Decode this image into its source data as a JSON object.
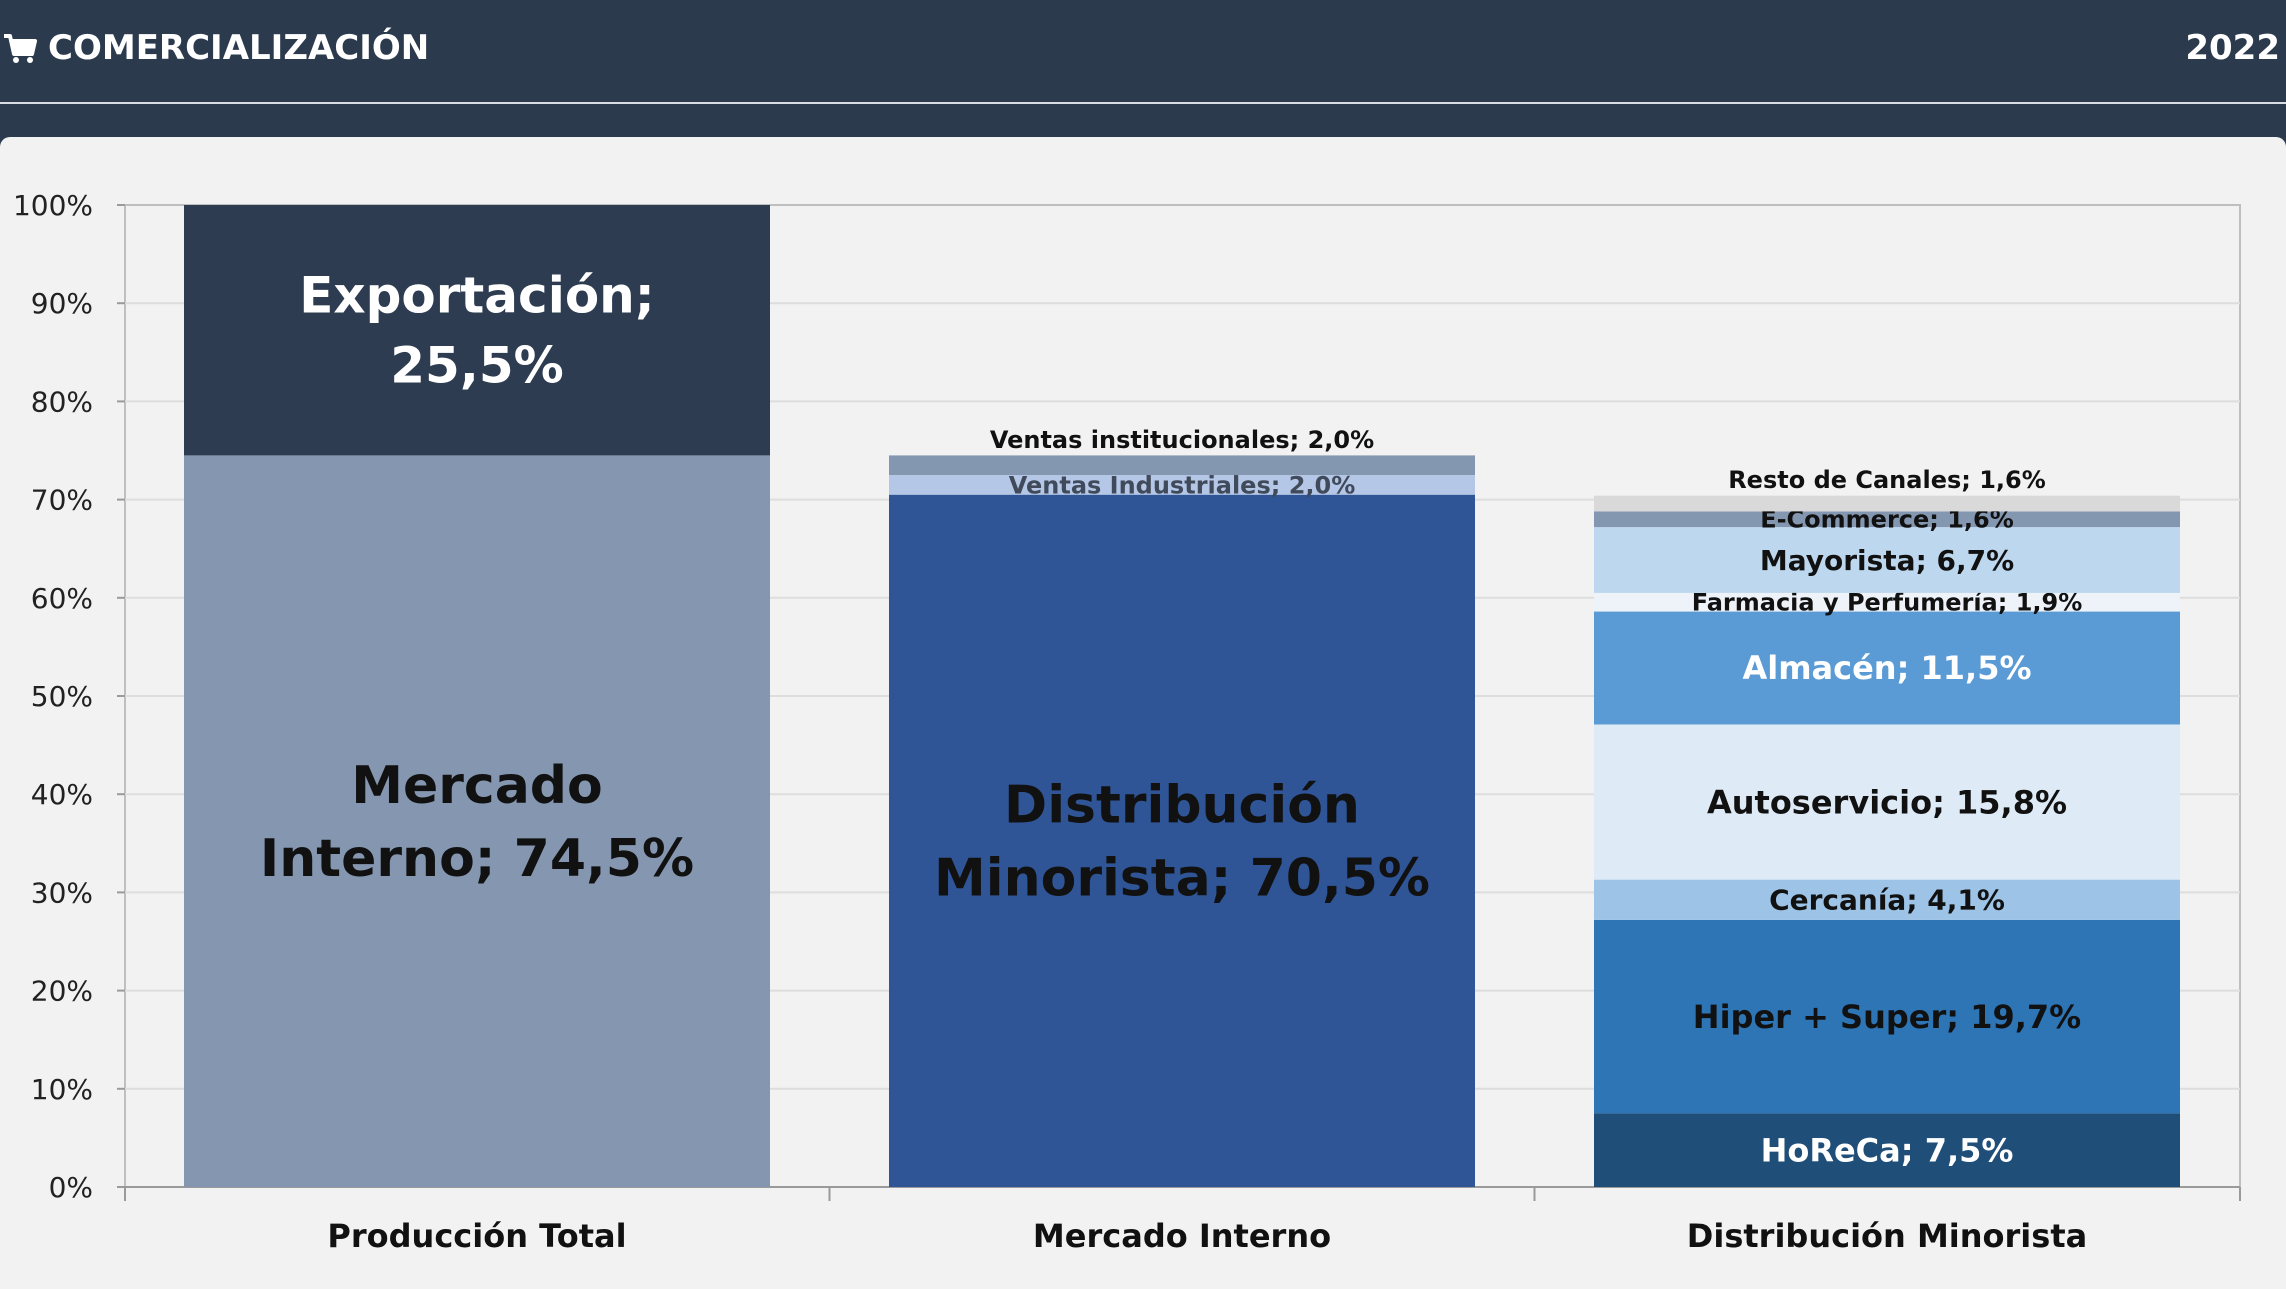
{
  "header": {
    "title": "COMERCIALIZACIÓN",
    "year": "2022",
    "icon": "shopping-cart-icon"
  },
  "chart_data": {
    "type": "bar",
    "stacked": true,
    "ylim": [
      0,
      100
    ],
    "y_ticks": [
      "0%",
      "10%",
      "20%",
      "30%",
      "40%",
      "50%",
      "60%",
      "70%",
      "80%",
      "90%",
      "100%"
    ],
    "grid": true,
    "categories": [
      "Producción Total",
      "Mercado Interno",
      "Distribución Minorista"
    ],
    "bars": [
      {
        "category": "Producción Total",
        "segments": [
          {
            "label": [
              "Mercado",
              "Interno; 74,5%"
            ],
            "value": 74.5,
            "color": "#8597b0",
            "text_color": "#111111",
            "size": "xl"
          },
          {
            "label": [
              "Exportación;",
              "25,5%"
            ],
            "value": 25.5,
            "color": "#2e3c51",
            "text_color": "#ffffff",
            "size": "lg"
          }
        ]
      },
      {
        "category": "Mercado Interno",
        "segments": [
          {
            "label": [
              "Distribución",
              "Minorista; 70,5%"
            ],
            "value": 70.5,
            "color": "#2f5597",
            "text_color": "#111111",
            "size": "xl"
          },
          {
            "label": [
              "Ventas Industriales; 2,0%"
            ],
            "value": 2.0,
            "color": "#b4c7e7",
            "text_color": "#404a5a",
            "size": "xs"
          },
          {
            "label": [
              "Ventas institucionales; 2,0%"
            ],
            "value": 2.0,
            "color": "#8497b0",
            "text_color": "#111111",
            "size": "xs",
            "label_above": true
          }
        ]
      },
      {
        "category": "Distribución Minorista",
        "segments": [
          {
            "label": [
              "HoReCa; 7,5%"
            ],
            "value": 7.5,
            "color": "#1f4e79",
            "text_color": "#ffffff",
            "size": "md"
          },
          {
            "label": [
              "Hiper + Super; 19,7%"
            ],
            "value": 19.7,
            "color": "#2e75b6",
            "text_color": "#111111",
            "size": "md"
          },
          {
            "label": [
              "Cercanía; 4,1%"
            ],
            "value": 4.1,
            "color": "#9dc3e6",
            "text_color": "#111111",
            "size": "sm"
          },
          {
            "label": [
              "Autoservicio; 15,8%"
            ],
            "value": 15.8,
            "color": "#deebf7",
            "text_color": "#111111",
            "size": "md"
          },
          {
            "label": [
              "Almacén; 11,5%"
            ],
            "value": 11.5,
            "color": "#5b9bd5",
            "text_color": "#ffffff",
            "size": "md"
          },
          {
            "label": [
              "Farmacia y Perfumería; 1,9%"
            ],
            "value": 1.9,
            "color": "#eef3fa",
            "text_color": "#111111",
            "size": "xs"
          },
          {
            "label": [
              "Mayorista; 6,7%"
            ],
            "value": 6.7,
            "color": "#bdd7ee",
            "text_color": "#111111",
            "size": "sm"
          },
          {
            "label": [
              "E-Commerce; 1,6%"
            ],
            "value": 1.6,
            "color": "#8497b0",
            "text_color": "#111111",
            "size": "xs"
          },
          {
            "label": [
              "Resto de Canales; 1,6%"
            ],
            "value": 1.6,
            "color": "#d9d9d9",
            "text_color": "#111111",
            "size": "xs",
            "label_above": true
          }
        ]
      }
    ]
  }
}
